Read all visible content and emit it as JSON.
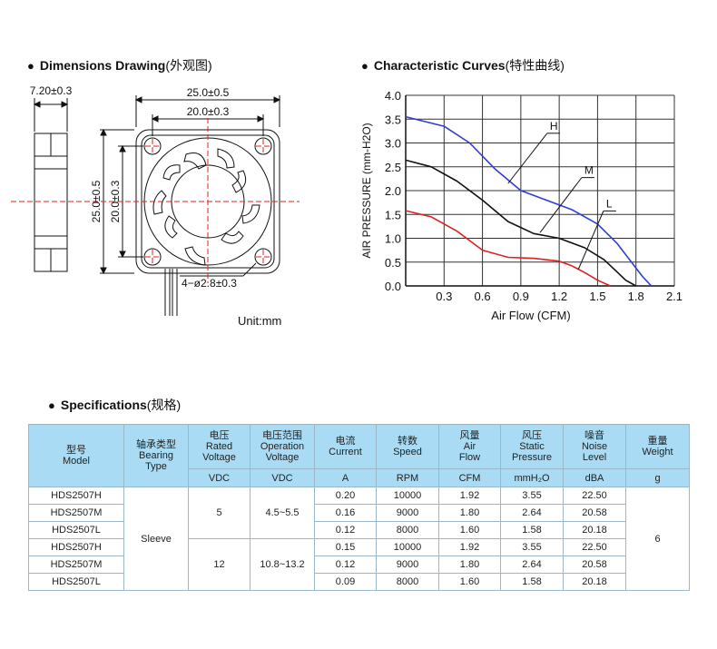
{
  "dimensions": {
    "title": "Dimensions Drawing",
    "title_cn": "(外观图)",
    "thickness": "7.20±0.3",
    "outer_width": "25.0±0.5",
    "hole_spacing": "20.0±0.3",
    "outer_height": "25.0±0.5",
    "hole_spacing_v": "20.0±0.3",
    "hole_callout": "4−ø2.8±0.3",
    "unit": "Unit:mm"
  },
  "curves": {
    "title": "Characteristic Curves",
    "title_cn": "(特性曲线)"
  },
  "chart_data": {
    "type": "line",
    "title": "Characteristic Curves(特性曲线)",
    "xlabel": "Air Flow (CFM)",
    "ylabel": "AIR PRESSURE (mm-H2O)",
    "xlim": [
      0,
      2.1
    ],
    "ylim": [
      0,
      4.0
    ],
    "x_ticks": [
      "0.3",
      "0.6",
      "0.9",
      "1.2",
      "1.5",
      "1.8",
      "2.1"
    ],
    "y_ticks": [
      "0.0",
      "0.5",
      "1.0",
      "1.5",
      "2.0",
      "2.5",
      "3.0",
      "3.5",
      "4.0"
    ],
    "grid": true,
    "series": [
      {
        "name": "H",
        "color": "#2c3fd6",
        "x": [
          0,
          0.3,
          0.5,
          0.7,
          0.9,
          1.1,
          1.3,
          1.5,
          1.65,
          1.75,
          1.85,
          1.92
        ],
        "y": [
          3.55,
          3.35,
          3.0,
          2.45,
          2.0,
          1.8,
          1.6,
          1.3,
          0.9,
          0.55,
          0.2,
          0
        ]
      },
      {
        "name": "M",
        "color": "#111111",
        "x": [
          0,
          0.2,
          0.4,
          0.6,
          0.8,
          1.0,
          1.2,
          1.4,
          1.55,
          1.65,
          1.72,
          1.8
        ],
        "y": [
          2.64,
          2.5,
          2.2,
          1.8,
          1.35,
          1.1,
          1.0,
          0.8,
          0.55,
          0.3,
          0.12,
          0
        ]
      },
      {
        "name": "L",
        "color": "#e02020",
        "x": [
          0,
          0.2,
          0.4,
          0.6,
          0.8,
          1.0,
          1.2,
          1.3,
          1.4,
          1.5,
          1.6
        ],
        "y": [
          1.58,
          1.45,
          1.15,
          0.75,
          0.6,
          0.58,
          0.52,
          0.42,
          0.28,
          0.12,
          0
        ]
      }
    ]
  },
  "specs": {
    "title": "Specifications",
    "title_cn": "(规格)",
    "headers": {
      "model": [
        "型号",
        "Model"
      ],
      "bearing": [
        "轴承类型",
        "Bearing",
        "Type"
      ],
      "voltage": [
        "电压",
        "Rated",
        "Voltage"
      ],
      "op_voltage": [
        "电压范围",
        "Operation",
        "Voltage"
      ],
      "current": [
        "电流",
        "Current"
      ],
      "speed": [
        "转数",
        "Speed"
      ],
      "airflow": [
        "风量",
        "Air",
        "Flow"
      ],
      "pressure": [
        "风压",
        "Static",
        "Pressure"
      ],
      "noise": [
        "噪音",
        "Noise",
        "Level"
      ],
      "weight": [
        "重量",
        "Weight"
      ]
    },
    "units": {
      "voltage": "VDC",
      "op_voltage": "VDC",
      "current": "A",
      "speed": "RPM",
      "airflow": "CFM",
      "pressure": "mmH₂O",
      "noise": "dBA",
      "weight": "g"
    },
    "bearing": "Sleeve",
    "weight": "6",
    "groups": [
      {
        "voltage": "5",
        "op_voltage": "4.5~5.5"
      },
      {
        "voltage": "12",
        "op_voltage": "10.8~13.2"
      }
    ],
    "rows": [
      {
        "model": "HDS2507H",
        "current": "0.20",
        "speed": "10000",
        "airflow": "1.92",
        "pressure": "3.55",
        "noise": "22.50"
      },
      {
        "model": "HDS2507M",
        "current": "0.16",
        "speed": "9000",
        "airflow": "1.80",
        "pressure": "2.64",
        "noise": "20.58"
      },
      {
        "model": "HDS2507L",
        "current": "0.12",
        "speed": "8000",
        "airflow": "1.60",
        "pressure": "1.58",
        "noise": "20.18"
      },
      {
        "model": "HDS2507H",
        "current": "0.15",
        "speed": "10000",
        "airflow": "1.92",
        "pressure": "3.55",
        "noise": "22.50"
      },
      {
        "model": "HDS2507M",
        "current": "0.12",
        "speed": "9000",
        "airflow": "1.80",
        "pressure": "2.64",
        "noise": "20.58"
      },
      {
        "model": "HDS2507L",
        "current": "0.09",
        "speed": "8000",
        "airflow": "1.60",
        "pressure": "1.58",
        "noise": "20.18"
      }
    ]
  }
}
